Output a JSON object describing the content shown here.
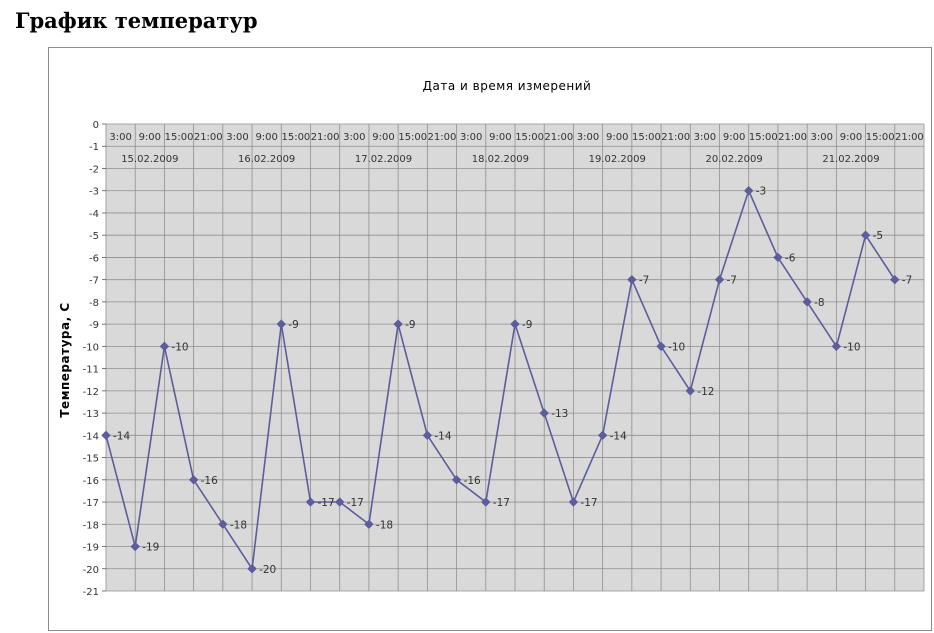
{
  "page": {
    "title": "График температур"
  },
  "chart_data": {
    "type": "line",
    "title": "Дата и время измерений",
    "xlabel": "Дата и время измерений",
    "ylabel": "Температура, С",
    "ylim": [
      -21,
      0
    ],
    "y_ticks": [
      0,
      -1,
      -2,
      -3,
      -4,
      -5,
      -6,
      -7,
      -8,
      -9,
      -10,
      -11,
      -12,
      -13,
      -14,
      -15,
      -16,
      -17,
      -18,
      -19,
      -20,
      -21
    ],
    "grid": true,
    "x_axis_position": "top",
    "colors": {
      "line": "#5d5d9c",
      "plot_bg": "#d9d9d9",
      "grid": "#8f8f8f"
    },
    "x": [
      {
        "date": "15.02.2009",
        "time": "3:00"
      },
      {
        "date": "15.02.2009",
        "time": "9:00"
      },
      {
        "date": "15.02.2009",
        "time": "15:00"
      },
      {
        "date": "15.02.2009",
        "time": "21:00"
      },
      {
        "date": "16.02.2009",
        "time": "3:00"
      },
      {
        "date": "16.02.2009",
        "time": "9:00"
      },
      {
        "date": "16.02.2009",
        "time": "15:00"
      },
      {
        "date": "16.02.2009",
        "time": "21:00"
      },
      {
        "date": "17.02.2009",
        "time": "3:00"
      },
      {
        "date": "17.02.2009",
        "time": "9:00"
      },
      {
        "date": "17.02.2009",
        "time": "15:00"
      },
      {
        "date": "17.02.2009",
        "time": "21:00"
      },
      {
        "date": "18.02.2009",
        "time": "3:00"
      },
      {
        "date": "18.02.2009",
        "time": "9:00"
      },
      {
        "date": "18.02.2009",
        "time": "15:00"
      },
      {
        "date": "18.02.2009",
        "time": "21:00"
      },
      {
        "date": "19.02.2009",
        "time": "3:00"
      },
      {
        "date": "19.02.2009",
        "time": "9:00"
      },
      {
        "date": "19.02.2009",
        "time": "15:00"
      },
      {
        "date": "19.02.2009",
        "time": "21:00"
      },
      {
        "date": "20.02.2009",
        "time": "3:00"
      },
      {
        "date": "20.02.2009",
        "time": "9:00"
      },
      {
        "date": "20.02.2009",
        "time": "15:00"
      },
      {
        "date": "20.02.2009",
        "time": "21:00"
      },
      {
        "date": "21.02.2009",
        "time": "3:00"
      },
      {
        "date": "21.02.2009",
        "time": "9:00"
      },
      {
        "date": "21.02.2009",
        "time": "15:00"
      },
      {
        "date": "21.02.2009",
        "time": "21:00"
      }
    ],
    "dates": [
      "15.02.2009",
      "16.02.2009",
      "17.02.2009",
      "18.02.2009",
      "19.02.2009",
      "20.02.2009",
      "21.02.2009"
    ],
    "series": [
      {
        "values": [
          -14,
          -19,
          -10,
          -16,
          -18,
          -20,
          -9,
          -17,
          -17,
          -18,
          -9,
          -14,
          -16,
          -17,
          -9,
          -13,
          -17,
          -14,
          -7,
          -10,
          -12,
          -7,
          -3,
          -6,
          -8,
          -10,
          -5,
          -7
        ],
        "data_labels": [
          "-14",
          "-19",
          "-10",
          "-16",
          "-18",
          "-20",
          "-9",
          "-17",
          "-17",
          "-18",
          "-9",
          "-14",
          "-16",
          "-17",
          "-9",
          "-13",
          "-17",
          "-14",
          "-7",
          "-10",
          "-12",
          "-7",
          "-3",
          "-6",
          "-8",
          "-10",
          "-5",
          "-7"
        ]
      }
    ]
  }
}
